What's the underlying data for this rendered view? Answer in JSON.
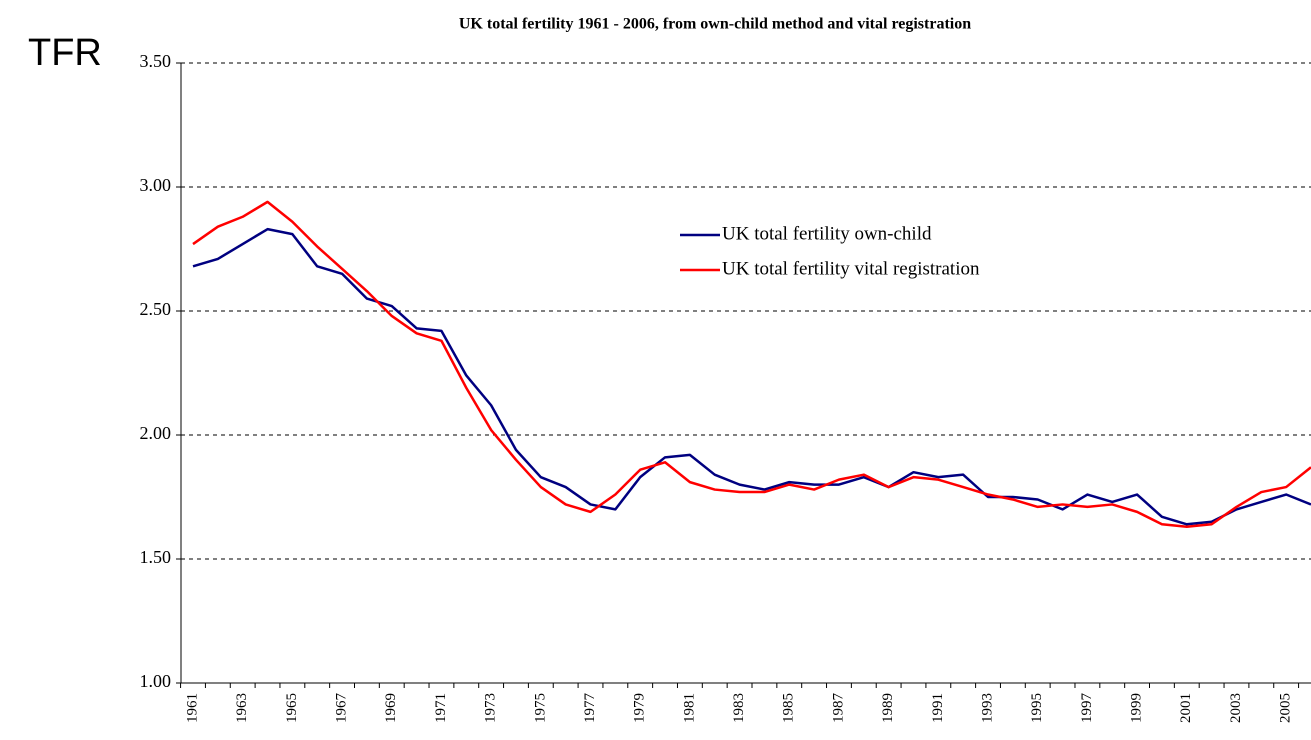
{
  "chart_data": {
    "type": "line",
    "title": "UK total fertility 1961 - 2006, from own-child method and vital registration",
    "y_label": "TFR",
    "categories": [
      "1961",
      null,
      "1963",
      null,
      "1965",
      null,
      "1967",
      null,
      "1969",
      null,
      "1971",
      null,
      "1973",
      null,
      "1975",
      null,
      "1977",
      null,
      "1979",
      null,
      "1981",
      null,
      "1983",
      null,
      "1985",
      null,
      "1987",
      null,
      "1989",
      null,
      "1991",
      null,
      "1993",
      null,
      "1995",
      null,
      "1997",
      null,
      "1999",
      null,
      "2001",
      null,
      "2003",
      null,
      "2005",
      null
    ],
    "series": [
      {
        "name": "UK total fertility own-child",
        "color": "#000080",
        "values": [
          2.68,
          2.71,
          2.77,
          2.83,
          2.81,
          2.68,
          2.65,
          2.55,
          2.52,
          2.43,
          2.42,
          2.24,
          2.12,
          1.94,
          1.83,
          1.79,
          1.72,
          1.7,
          1.83,
          1.91,
          1.92,
          1.84,
          1.8,
          1.78,
          1.81,
          1.8,
          1.8,
          1.83,
          1.79,
          1.85,
          1.83,
          1.84,
          1.75,
          1.75,
          1.74,
          1.7,
          1.76,
          1.73,
          1.76,
          1.67,
          1.64,
          1.65,
          1.7,
          1.73,
          1.76,
          1.72
        ]
      },
      {
        "name": "UK total fertility vital registration",
        "color": "#ff0000",
        "values": [
          2.77,
          2.84,
          2.88,
          2.94,
          2.86,
          2.76,
          2.67,
          2.58,
          2.48,
          2.41,
          2.38,
          2.19,
          2.02,
          1.9,
          1.79,
          1.72,
          1.69,
          1.76,
          1.86,
          1.89,
          1.81,
          1.78,
          1.77,
          1.77,
          1.8,
          1.78,
          1.82,
          1.84,
          1.79,
          1.83,
          1.82,
          1.79,
          1.76,
          1.74,
          1.71,
          1.72,
          1.71,
          1.72,
          1.69,
          1.64,
          1.63,
          1.64,
          1.71,
          1.77,
          1.79,
          1.87
        ]
      }
    ],
    "ylim": [
      1,
      3.5
    ],
    "yticks": [
      {
        "value": 1,
        "label": "1.00"
      },
      {
        "value": 1.5,
        "label": "1.50"
      },
      {
        "value": 2,
        "label": "2.00"
      },
      {
        "value": 2.5,
        "label": "2.50"
      },
      {
        "value": 3,
        "label": "3.00"
      },
      {
        "value": 3.5,
        "label": "3.50"
      }
    ],
    "grid": true
  }
}
